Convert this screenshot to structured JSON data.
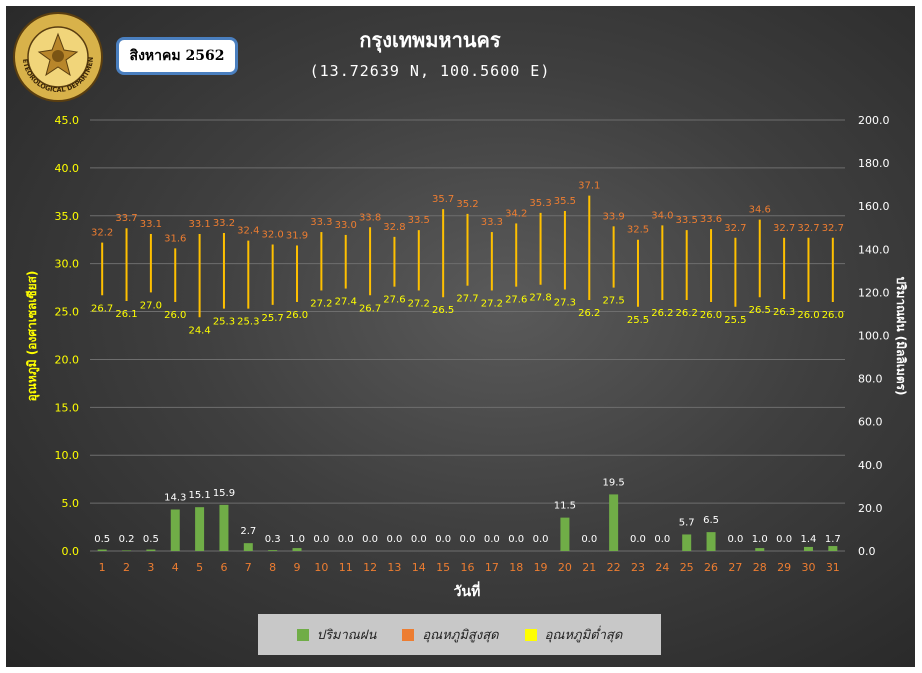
{
  "header": {
    "month_label": "สิงหาคม 2562",
    "title": "กรุงเทพมหานคร",
    "subtitle": "(13.72639 N, 100.5600 E)"
  },
  "logo": {
    "name": "meteorological-department-seal",
    "text": "METEOROLOGICAL DEPARTMENT"
  },
  "colors": {
    "rain": "#70ad47",
    "tmax_label": "#ed7d31",
    "tmin_label": "#ffff00",
    "range_bar": "#ffc000",
    "axis_left_text": "#ffff00",
    "axis_right_text": "#ffffff",
    "x_tick_text": "#ed7d31"
  },
  "chart_data": {
    "type": "bar",
    "xlabel": "วันที่",
    "ylabel_left": "อุณหภูมิ (องศาเซลเซียส)",
    "ylabel_right": "ปริมาณฝน (มิลลิเมตร)",
    "ylim_left": [
      0,
      45
    ],
    "ylim_right": [
      0,
      200
    ],
    "left_ticks": [
      "0.0",
      "5.0",
      "10.0",
      "15.0",
      "20.0",
      "25.0",
      "30.0",
      "35.0",
      "40.0",
      "45.0"
    ],
    "right_ticks": [
      "0.0",
      "20.0",
      "40.0",
      "60.0",
      "80.0",
      "100.0",
      "120.0",
      "140.0",
      "160.0",
      "180.0",
      "200.0"
    ],
    "grid": true,
    "legend_position": "bottom",
    "categories": [
      "1",
      "2",
      "3",
      "4",
      "5",
      "6",
      "7",
      "8",
      "9",
      "10",
      "11",
      "12",
      "13",
      "14",
      "15",
      "16",
      "17",
      "18",
      "19",
      "20",
      "21",
      "22",
      "23",
      "24",
      "25",
      "26",
      "27",
      "28",
      "29",
      "30",
      "31"
    ],
    "series": [
      {
        "name": "ปริมาณฝน",
        "type": "bar",
        "axis": "left",
        "values": [
          0.5,
          0.2,
          0.5,
          14.3,
          15.1,
          15.9,
          2.7,
          0.3,
          1.0,
          0.0,
          0.0,
          0.0,
          0.0,
          0.0,
          0.0,
          0.0,
          0.0,
          0.0,
          0.0,
          11.5,
          0.0,
          19.5,
          0.0,
          0.0,
          5.7,
          6.5,
          0.0,
          1.0,
          0.0,
          1.4,
          1.7
        ],
        "labels": [
          "0.5",
          "0.2",
          "0.5",
          "14.3",
          "15.1",
          "15.9",
          "2.7",
          "0.3",
          "1.0",
          "0.0",
          "0.0",
          "0.0",
          "0.0",
          "0.0",
          "0.0",
          "0.0",
          "0.0",
          "0.0",
          "0.0",
          "11.5",
          "0.0",
          "19.5",
          "0.0",
          "0.0",
          "5.7",
          "6.5",
          "0.0",
          "1.0",
          "0.0",
          "1.4",
          "1.7"
        ]
      },
      {
        "name": "อุณหภูมิสูงสุด",
        "type": "range-top",
        "axis": "left",
        "values": [
          32.2,
          33.7,
          33.1,
          31.6,
          33.1,
          33.2,
          32.4,
          32.0,
          31.9,
          33.3,
          33.0,
          33.8,
          32.8,
          33.5,
          35.7,
          35.2,
          33.3,
          34.2,
          35.3,
          35.5,
          37.1,
          33.9,
          32.5,
          34.0,
          33.5,
          33.6,
          32.7,
          34.6,
          32.7,
          32.7,
          32.7
        ],
        "labels": [
          "32.2",
          "33.7",
          "33.1",
          "31.6",
          "33.1",
          "33.2",
          "32.4",
          "32.0",
          "31.9",
          "33.3",
          "33.0",
          "33.8",
          "32.8",
          "33.5",
          "35.7",
          "35.2",
          "33.3",
          "34.2",
          "35.3",
          "35.5",
          "37.1",
          "33.9",
          "32.5",
          "34.0",
          "33.5",
          "33.6",
          "32.7",
          "34.6",
          "32.7",
          "32.7",
          "32.7"
        ]
      },
      {
        "name": "อุณหภูมิต่ำสุด",
        "type": "range-bottom",
        "axis": "left",
        "values": [
          26.7,
          26.1,
          27.0,
          26.0,
          24.4,
          25.3,
          25.3,
          25.7,
          26.0,
          27.2,
          27.4,
          26.7,
          27.6,
          27.2,
          26.5,
          27.7,
          27.2,
          27.6,
          27.8,
          27.3,
          26.2,
          27.5,
          25.5,
          26.2,
          26.2,
          26.0,
          25.5,
          26.5,
          26.3,
          26.0,
          26.0
        ],
        "labels": [
          "26.7",
          "26.1",
          "27.0",
          "26.0",
          "24.4",
          "25.3",
          "25.3",
          "25.7",
          "26.0",
          "27.2",
          "27.4",
          "26.7",
          "27.6",
          "27.2",
          "26.5",
          "27.7",
          "27.2",
          "27.6",
          "27.8",
          "27.3",
          "26.2",
          "27.5",
          "25.5",
          "26.2",
          "26.2",
          "26.0",
          "25.5",
          "26.5",
          "26.3",
          "26.0",
          "26.0"
        ]
      }
    ]
  }
}
